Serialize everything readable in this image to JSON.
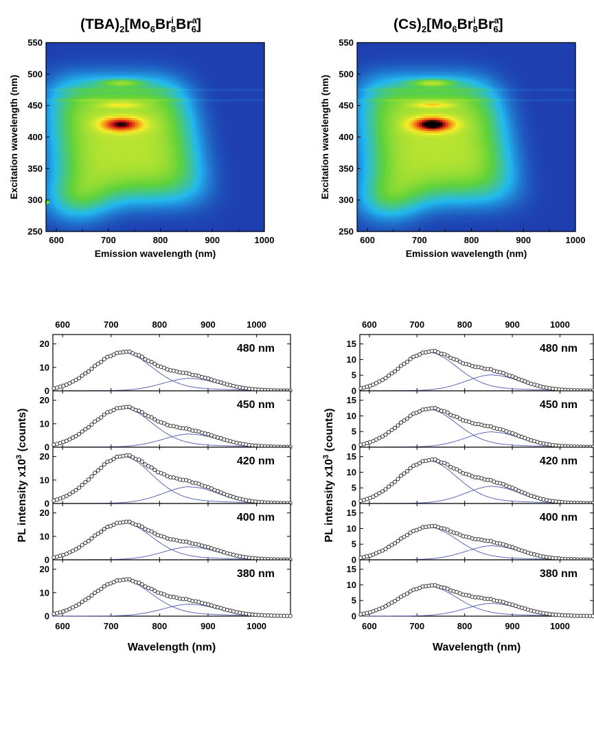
{
  "figure": {
    "titles": [
      {
        "formula": [
          "(TBA)",
          "2",
          "[Mo",
          "6",
          "Br",
          "i",
          "8",
          "Br",
          "a",
          "6",
          "]"
        ]
      },
      {
        "formula": [
          "(Cs)",
          "2",
          "[Mo",
          "6",
          "Br",
          "i",
          "8",
          "Br",
          "a",
          "6",
          "]"
        ]
      }
    ]
  },
  "chart_data": [
    {
      "type": "heatmap",
      "sample": "(TBA)2[Mo6Bri8Bra6]",
      "xlabel": "Emission wavelength (nm)",
      "ylabel": "Excitation wavelength (nm)",
      "xlim": [
        580,
        1000
      ],
      "ylim": [
        250,
        550
      ],
      "xticks": [
        600,
        700,
        800,
        900,
        1000
      ],
      "yticks": [
        250,
        300,
        350,
        400,
        450,
        500,
        550
      ],
      "colormap": [
        "#1e3fb0",
        "#22b8f0",
        "#5fd23a",
        "#f5ef2a",
        "#f07a12",
        "#d8141a",
        "#000000"
      ],
      "hotspots": [
        {
          "emission": 725,
          "excitation": 420,
          "level": "max"
        },
        {
          "emission": 725,
          "excitation": 485,
          "level": "high"
        },
        {
          "emission": 725,
          "excitation": 450,
          "level": "high"
        }
      ],
      "marker": {
        "emission": 582,
        "excitation": 297,
        "color": "#66dd33"
      }
    },
    {
      "type": "heatmap",
      "sample": "(Cs)2[Mo6Bri8Bra6]",
      "xlabel": "Emission wavelength (nm)",
      "ylabel": "Excitation wavelength (nm)",
      "xlim": [
        580,
        1000
      ],
      "ylim": [
        250,
        550
      ],
      "xticks": [
        600,
        700,
        800,
        900,
        1000
      ],
      "yticks": [
        250,
        300,
        350,
        400,
        450,
        500,
        550
      ],
      "colormap": [
        "#1e3fb0",
        "#22b8f0",
        "#5fd23a",
        "#f5ef2a",
        "#f07a12",
        "#d8141a",
        "#000000"
      ],
      "hotspots": [
        {
          "emission": 725,
          "excitation": 420,
          "level": "max"
        },
        {
          "emission": 725,
          "excitation": 485,
          "level": "high"
        },
        {
          "emission": 725,
          "excitation": 450,
          "level": "high"
        }
      ]
    },
    {
      "type": "line",
      "sample": "(TBA)2[Mo6Bri8Bra6]",
      "xlabel": "Wavelength (nm)",
      "ylabel": "PL intensity x10^3 (counts)",
      "xlim": [
        580,
        1070
      ],
      "xticks": [
        600,
        700,
        800,
        900,
        1000
      ],
      "yticks": [
        0,
        10,
        20
      ],
      "ylim": [
        0,
        24
      ],
      "panels": [
        {
          "label": "480 nm",
          "peak1": {
            "center": 722,
            "amplitude": 16.0
          },
          "peak2": {
            "center": 865,
            "amplitude": 5.2
          },
          "total_max": 17.5
        },
        {
          "label": "450 nm",
          "peak1": {
            "center": 722,
            "amplitude": 16.4
          },
          "peak2": {
            "center": 865,
            "amplitude": 5.5
          },
          "total_max": 18.0
        },
        {
          "label": "420 nm",
          "peak1": {
            "center": 722,
            "amplitude": 19.6
          },
          "peak2": {
            "center": 865,
            "amplitude": 7.0
          },
          "total_max": 21.3
        },
        {
          "label": "400 nm",
          "peak1": {
            "center": 722,
            "amplitude": 15.5
          },
          "peak2": {
            "center": 865,
            "amplitude": 5.4
          },
          "total_max": 17.2
        },
        {
          "label": "380 nm",
          "peak1": {
            "center": 722,
            "amplitude": 15.0
          },
          "peak2": {
            "center": 865,
            "amplitude": 5.0
          },
          "total_max": 16.5
        }
      ]
    },
    {
      "type": "line",
      "sample": "(Cs)2[Mo6Bri8Bra6]",
      "xlabel": "Wavelength (nm)",
      "ylabel": "PL intensity x10^3 (counts)",
      "xlim": [
        580,
        1070
      ],
      "xticks": [
        600,
        700,
        800,
        900,
        1000
      ],
      "yticks": [
        0,
        5,
        10,
        15
      ],
      "ylim": [
        0,
        18
      ],
      "panels": [
        {
          "label": "480 nm",
          "peak1": {
            "center": 722,
            "amplitude": 12.0
          },
          "peak2": {
            "center": 860,
            "amplitude": 5.0
          },
          "total_max": 13.6
        },
        {
          "label": "450 nm",
          "peak1": {
            "center": 722,
            "amplitude": 11.8
          },
          "peak2": {
            "center": 860,
            "amplitude": 4.8
          },
          "total_max": 13.1
        },
        {
          "label": "420 nm",
          "peak1": {
            "center": 722,
            "amplitude": 13.3
          },
          "peak2": {
            "center": 860,
            "amplitude": 5.4
          },
          "total_max": 14.6
        },
        {
          "label": "400 nm",
          "peak1": {
            "center": 722,
            "amplitude": 10.2
          },
          "peak2": {
            "center": 860,
            "amplitude": 4.4
          },
          "total_max": 11.6
        },
        {
          "label": "380 nm",
          "peak1": {
            "center": 722,
            "amplitude": 9.3
          },
          "peak2": {
            "center": 860,
            "amplitude": 4.0
          },
          "total_max": 10.4
        }
      ]
    }
  ],
  "styles": {
    "data_marker_edge": "#222222",
    "data_marker_fill": "#ffffff",
    "fit_total_color": "#e8231d",
    "fit_component_color": "#5a67b5"
  }
}
